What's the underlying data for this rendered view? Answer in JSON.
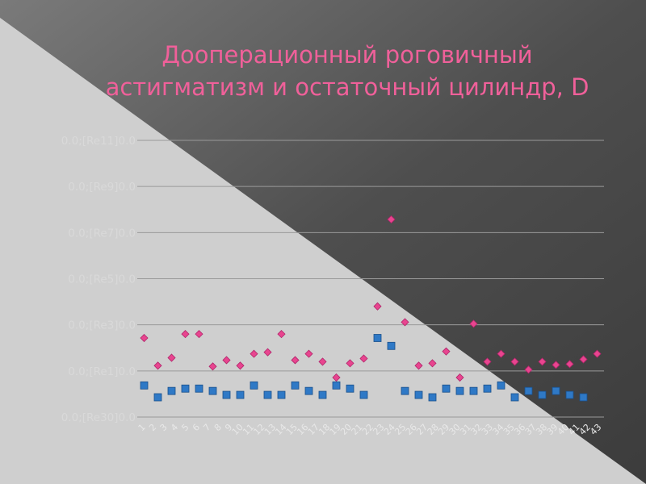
{
  "slide": {
    "title_line1": "Дооперационный роговичный",
    "title_line2": "астигматизм и остаточный цилиндр, D"
  },
  "colors": {
    "title": "#f0609a",
    "series_pre": "#e8458f",
    "series_post": "#2f79c6"
  },
  "chart_data": {
    "type": "scatter",
    "title": "",
    "xlabel": "",
    "ylabel": "",
    "ylim": [
      0,
      3.5
    ],
    "grid": true,
    "legend": "none",
    "y_tick_labels": [
      "0.0;[Re30]0.0",
      "0.0;[Re1]0.0",
      "0.0;[Re3]0.0",
      "0.0;[Re5]0.0",
      "0.0;[Re7]0.0",
      "0.0;[Re9]0.0",
      "0.0;[Re11]0.0"
    ],
    "x_tick_labels": [
      "1",
      "2",
      "3",
      "4",
      "5",
      "6",
      "7",
      "8",
      "9",
      "10",
      "11",
      "12",
      "13",
      "14",
      "15",
      "16",
      "17",
      "18",
      "19",
      "20",
      "21",
      "22",
      "23",
      "24",
      "25",
      "26",
      "27",
      "28",
      "29",
      "30",
      "31",
      "32",
      "33",
      "34",
      "35",
      "36",
      "37",
      "38",
      "39",
      "40",
      "41",
      "42",
      "43"
    ],
    "series": [
      {
        "marker": "diamond",
        "values": [
          1.0,
          0.65,
          0.75,
          1.05,
          1.05,
          0.64,
          0.72,
          0.65,
          0.8,
          0.82,
          1.05,
          0.72,
          0.8,
          0.7,
          0.5,
          0.68,
          0.74,
          1.4,
          2.5,
          1.2,
          0.65,
          0.68,
          0.83,
          0.5,
          1.18,
          0.7,
          0.8,
          0.7,
          0.6,
          0.7,
          0.66,
          0.67,
          0.73,
          0.8
        ],
        "x": [
          1,
          2,
          3,
          4,
          5,
          6,
          7,
          8,
          9,
          10,
          11,
          12,
          13,
          14,
          15,
          16,
          17,
          18,
          19,
          20,
          21,
          22,
          23,
          24,
          25,
          26,
          27,
          28,
          29,
          30,
          31,
          32,
          33,
          34
        ]
      },
      {
        "marker": "square",
        "values": [
          0.4,
          0.25,
          0.33,
          0.36,
          0.36,
          0.33,
          0.28,
          0.28,
          0.4,
          0.28,
          0.28,
          0.4,
          0.33,
          0.28,
          0.4,
          0.36,
          0.28,
          1.0,
          0.9,
          0.33,
          0.28,
          0.25,
          0.36,
          0.33,
          0.33,
          0.36,
          0.4,
          0.25,
          0.33,
          0.28,
          0.33,
          0.28,
          0.25
        ],
        "x": [
          1,
          2,
          3,
          4,
          5,
          6,
          7,
          8,
          9,
          10,
          11,
          12,
          13,
          14,
          15,
          16,
          17,
          18,
          19,
          20,
          21,
          22,
          23,
          24,
          25,
          26,
          27,
          28,
          29,
          30,
          31,
          32,
          33
        ]
      }
    ]
  }
}
